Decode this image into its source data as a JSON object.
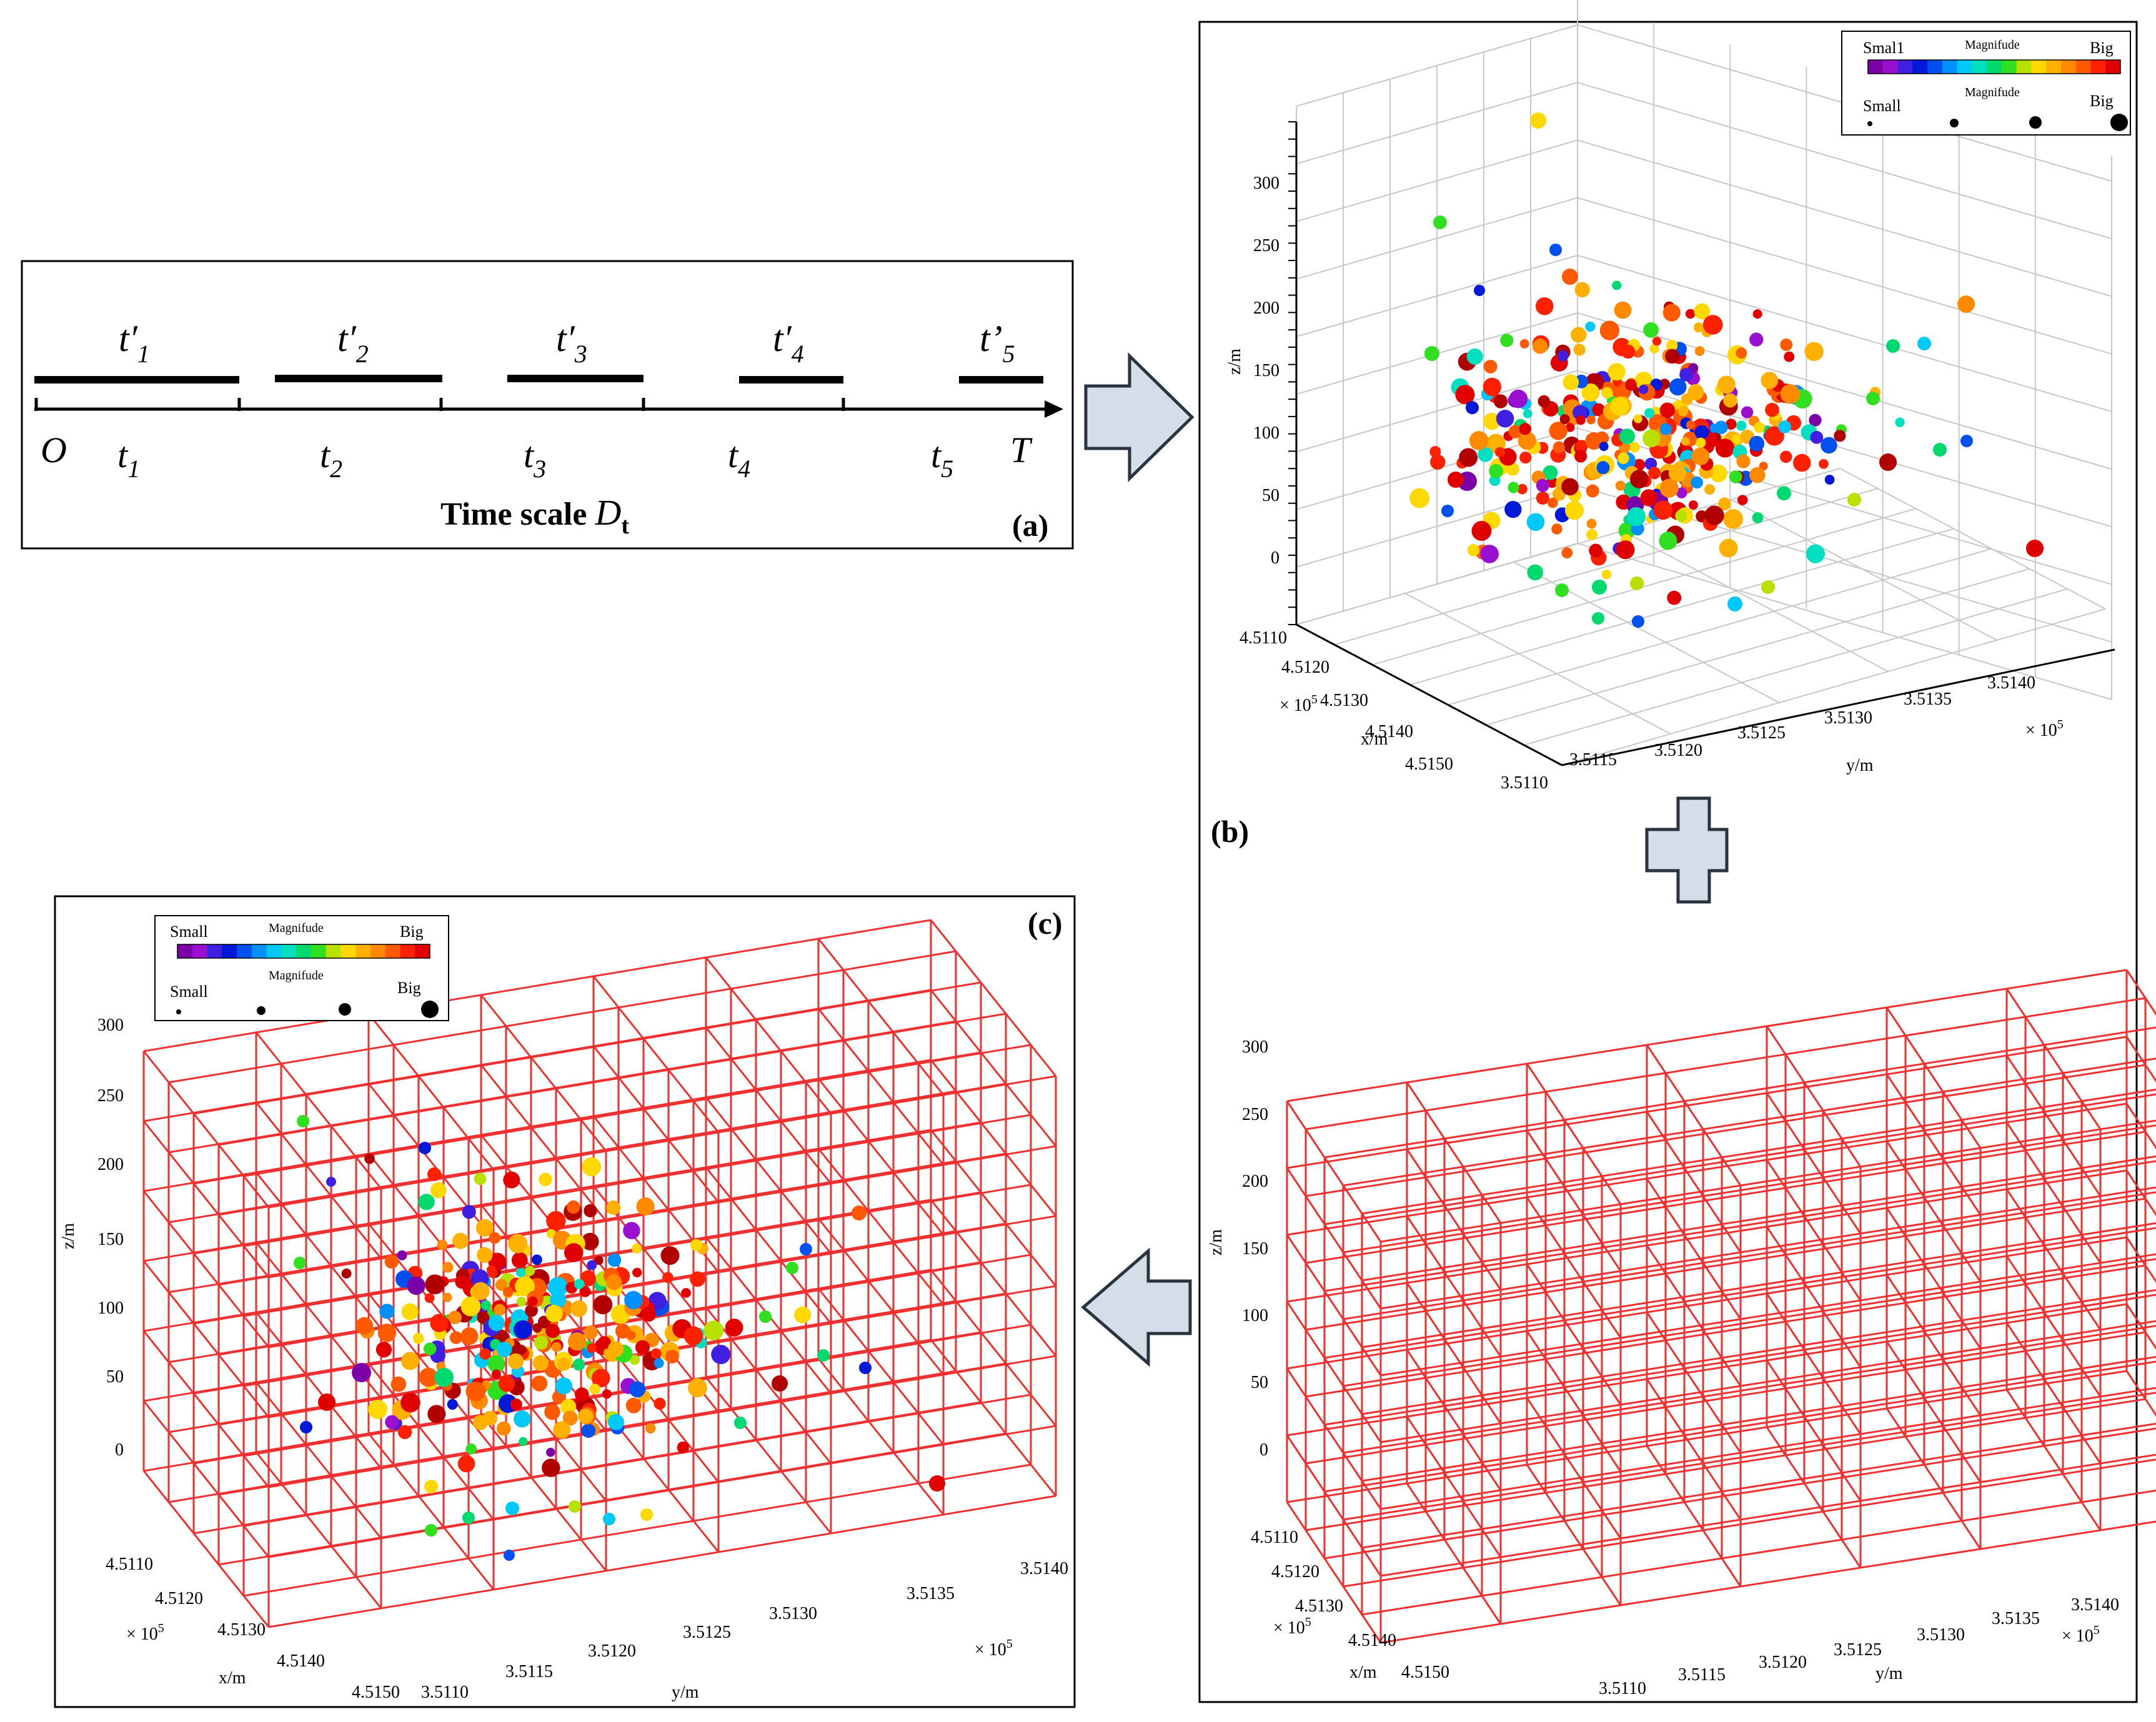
{
  "panel_a": {
    "label": "(a)",
    "segments": [
      {
        "base": "t",
        "prime": "′",
        "sub": "1"
      },
      {
        "base": "t",
        "prime": "′",
        "sub": "2"
      },
      {
        "base": "t",
        "prime": "′",
        "sub": "3"
      },
      {
        "base": "t",
        "prime": "′",
        "sub": "4"
      },
      {
        "base": "t",
        "prime": "’",
        "sub": "5"
      }
    ],
    "ticks": [
      {
        "base": "t",
        "sub": "1"
      },
      {
        "base": "t",
        "sub": "2"
      },
      {
        "base": "t",
        "sub": "3"
      },
      {
        "base": "t",
        "sub": "4"
      },
      {
        "base": "t",
        "sub": "5"
      }
    ],
    "origin_label": "O",
    "end_label": "T",
    "title_text": "Time scale ",
    "title_var": "D",
    "title_sub": "t"
  },
  "panel_b": {
    "label": "(b)",
    "zlabel": "z/m",
    "xlabel": "x/m",
    "ylabel": "y/m",
    "z_ticks": [
      "300",
      "250",
      "200",
      "150",
      "100",
      "50",
      "0"
    ],
    "x_ticks": [
      "4.5110",
      "4.5120",
      "4.5130",
      "4.5140",
      "4.5150"
    ],
    "y_ticks": [
      "3.5110",
      "3.5115",
      "3.5120",
      "3.5125",
      "3.5130",
      "3.5135",
      "3.5140"
    ],
    "x_multiplier": "× 10",
    "x_exp": "5",
    "y_multiplier": "× 10",
    "y_exp": "5"
  },
  "panel_grid": {
    "zlabel": "z/m",
    "xlabel": "x/m",
    "ylabel": "y/m",
    "z_ticks": [
      "300",
      "250",
      "200",
      "150",
      "100",
      "50",
      "0"
    ],
    "x_ticks": [
      "4.5110",
      "4.5120",
      "4.5130",
      "4.5140",
      "4.5150"
    ],
    "y_ticks": [
      "3.5110",
      "3.5115",
      "3.5120",
      "3.5125",
      "3.5130",
      "3.5135",
      "3.5140"
    ],
    "x_multiplier": "× 10",
    "x_exp": "5",
    "y_multiplier": "× 10",
    "y_exp": "5"
  },
  "panel_c": {
    "label": "(c)",
    "zlabel": "z/m",
    "xlabel": "x/m",
    "ylabel": "y/m",
    "z_ticks": [
      "300",
      "250",
      "200",
      "150",
      "100",
      "50",
      "0"
    ],
    "x_ticks": [
      "4.5110",
      "4.5120",
      "4.5130",
      "4.5140",
      "4.5150"
    ],
    "y_ticks": [
      "3.5110",
      "3.5115",
      "3.5120",
      "3.5125",
      "3.5130",
      "3.5135",
      "3.5140"
    ],
    "x_multiplier": "× 10",
    "x_exp": "5",
    "y_multiplier": "× 10",
    "y_exp": "5"
  },
  "legend": {
    "small": "Small",
    "small_alt": "Smal1",
    "big": "Big",
    "magnitude": "Magnifude",
    "colors": [
      "#7b00a8",
      "#9a10d0",
      "#4020e0",
      "#0018d8",
      "#0050f0",
      "#0090ff",
      "#00c8f8",
      "#00e0c0",
      "#00d870",
      "#30e020",
      "#b8e000",
      "#ffd800",
      "#ffb000",
      "#ff8a00",
      "#ff5a00",
      "#ff2000",
      "#e00000"
    ]
  },
  "colors": {
    "grid_red": "#ee3030",
    "arrow_fill": "#d4dde8",
    "arrow_stroke": "#2a3340",
    "frame": "#000000"
  }
}
